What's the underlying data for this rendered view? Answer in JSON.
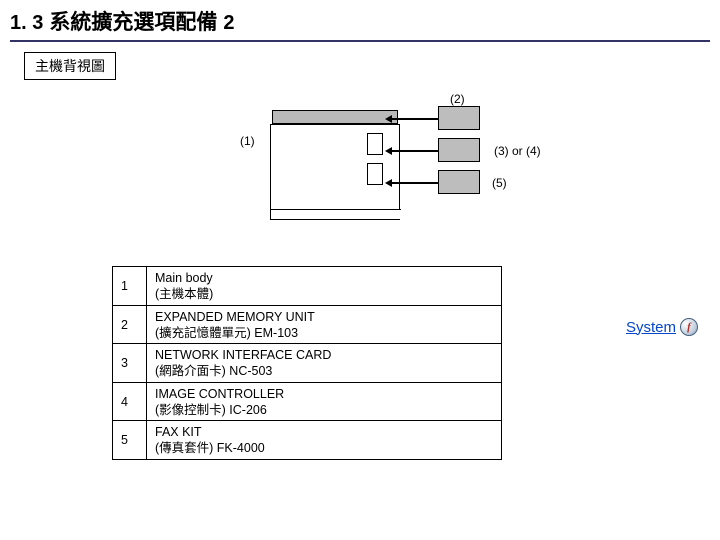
{
  "title": {
    "num": "1. 3",
    "zh": "系統擴充選項配備",
    "tail": "2"
  },
  "subhead": "主機背視圖",
  "labels": {
    "l1": "(1)",
    "l2": "(2)",
    "l34": "(3) or (4)",
    "l5": "(5)"
  },
  "table": {
    "rows": [
      {
        "n": "1",
        "en": "Main body",
        "zh": "(主機本體)"
      },
      {
        "n": "2",
        "en": "EXPANDED MEMORY UNIT",
        "zh": "(擴充記憶體單元) EM-103"
      },
      {
        "n": "3",
        "en": "NETWORK INTERFACE CARD",
        "zh": "(網路介面卡)   NC-503"
      },
      {
        "n": "4",
        "en": "IMAGE CONTROLLER",
        "zh": "(影像控制卡)   IC-206"
      },
      {
        "n": "5",
        "en": "FAX KIT",
        "zh": "(傳真套件)   FK-4000"
      }
    ]
  },
  "system_link": "System",
  "colors": {
    "rule": "#333366",
    "box_fill": "#bdbdbd",
    "top_fill": "#b9b9b9"
  }
}
